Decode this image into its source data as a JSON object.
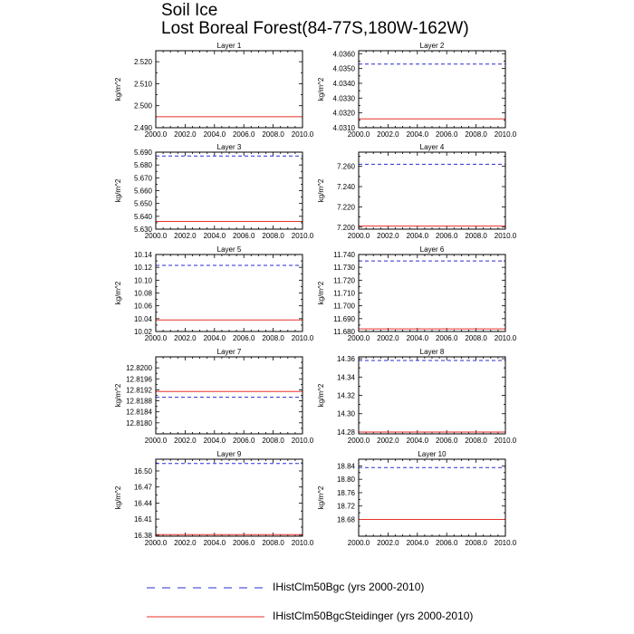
{
  "title": "Soil Ice",
  "subtitle": "Lost Boreal Forest(84-77S,180W-162W)",
  "colors": {
    "series1": "#2b2bd6",
    "series2": "#e8302a"
  },
  "chart_data": [
    {
      "type": "line",
      "title": "Layer 1",
      "ylabel": "kg/m^2",
      "xlim": [
        2000,
        2010
      ],
      "xticks": [
        "2000.0",
        "2002.0",
        "2004.0",
        "2006.0",
        "2008.0",
        "2010.0"
      ],
      "ylim": [
        2.49,
        2.525
      ],
      "yticks": [
        "2.490",
        "2.500",
        "2.510",
        "2.520"
      ],
      "series": [
        {
          "name": "IHistClm50Bgc (yrs 2000-2010)",
          "style": "dashed",
          "x": [
            2000,
            2010
          ],
          "values": [
            2.525,
            2.525
          ]
        },
        {
          "name": "IHistClm50BgcSteidinger (yrs 2000-2010)",
          "style": "solid",
          "x": [
            2000,
            2010
          ],
          "values": [
            2.495,
            2.495
          ]
        }
      ]
    },
    {
      "type": "line",
      "title": "Layer 2",
      "ylabel": "kg/m^2",
      "xlim": [
        2000,
        2010
      ],
      "xticks": [
        "2000.0",
        "2002.0",
        "2004.0",
        "2006.0",
        "2008.0",
        "2010.0"
      ],
      "ylim": [
        4.031,
        4.0362
      ],
      "yticks": [
        "4.0310",
        "4.0320",
        "4.0330",
        "4.0340",
        "4.0350",
        "4.0360"
      ],
      "series": [
        {
          "name": "IHistClm50Bgc (yrs 2000-2010)",
          "style": "dashed",
          "x": [
            2000,
            2010
          ],
          "values": [
            4.0353,
            4.0353
          ]
        },
        {
          "name": "IHistClm50BgcSteidinger (yrs 2000-2010)",
          "style": "solid",
          "x": [
            2000,
            2010
          ],
          "values": [
            4.0316,
            4.0316
          ]
        }
      ]
    },
    {
      "type": "line",
      "title": "Layer 3",
      "ylabel": "kg/m^2",
      "xlim": [
        2000,
        2010
      ],
      "xticks": [
        "2000.0",
        "2002.0",
        "2004.0",
        "2006.0",
        "2008.0",
        "2010.0"
      ],
      "ylim": [
        5.63,
        5.69
      ],
      "yticks": [
        "5.630",
        "5.640",
        "5.650",
        "5.660",
        "5.670",
        "5.680",
        "5.690"
      ],
      "series": [
        {
          "name": "IHistClm50Bgc (yrs 2000-2010)",
          "style": "dashed",
          "x": [
            2000,
            2010
          ],
          "values": [
            5.687,
            5.687
          ]
        },
        {
          "name": "IHistClm50BgcSteidinger (yrs 2000-2010)",
          "style": "solid",
          "x": [
            2000,
            2010
          ],
          "values": [
            5.636,
            5.636
          ]
        }
      ]
    },
    {
      "type": "line",
      "title": "Layer 4",
      "ylabel": "kg/m^2",
      "xlim": [
        2000,
        2010
      ],
      "xticks": [
        "2000.0",
        "2002.0",
        "2004.0",
        "2006.0",
        "2008.0",
        "2010.0"
      ],
      "ylim": [
        7.198,
        7.274
      ],
      "yticks": [
        "7.200",
        "7.220",
        "7.240",
        "7.260"
      ],
      "series": [
        {
          "name": "IHistClm50Bgc (yrs 2000-2010)",
          "style": "dashed",
          "x": [
            2000,
            2010
          ],
          "values": [
            7.262,
            7.262
          ]
        },
        {
          "name": "IHistClm50BgcSteidinger (yrs 2000-2010)",
          "style": "solid",
          "x": [
            2000,
            2010
          ],
          "values": [
            7.201,
            7.201
          ]
        }
      ]
    },
    {
      "type": "line",
      "title": "Layer 5",
      "ylabel": "kg/m^2",
      "xlim": [
        2000,
        2010
      ],
      "xticks": [
        "2000.0",
        "2002.0",
        "2004.0",
        "2006.0",
        "2008.0",
        "2010.0"
      ],
      "ylim": [
        10.02,
        10.14
      ],
      "yticks": [
        "10.02",
        "10.04",
        "10.06",
        "10.08",
        "10.10",
        "10.12",
        "10.14"
      ],
      "series": [
        {
          "name": "IHistClm50Bgc (yrs 2000-2010)",
          "style": "dashed",
          "x": [
            2000,
            2010
          ],
          "values": [
            10.123,
            10.123
          ]
        },
        {
          "name": "IHistClm50BgcSteidinger (yrs 2000-2010)",
          "style": "solid",
          "x": [
            2000,
            2010
          ],
          "values": [
            10.038,
            10.038
          ]
        }
      ]
    },
    {
      "type": "line",
      "title": "Layer 6",
      "ylabel": "kg/m^2",
      "xlim": [
        2000,
        2010
      ],
      "xticks": [
        "2000.0",
        "2002.0",
        "2004.0",
        "2006.0",
        "2008.0",
        "2010.0"
      ],
      "ylim": [
        11.68,
        11.74
      ],
      "yticks": [
        "11.680",
        "11.690",
        "11.700",
        "11.710",
        "11.720",
        "11.730",
        "11.740"
      ],
      "series": [
        {
          "name": "IHistClm50Bgc (yrs 2000-2010)",
          "style": "dashed",
          "x": [
            2000,
            2010
          ],
          "values": [
            11.735,
            11.735
          ]
        },
        {
          "name": "IHistClm50BgcSteidinger (yrs 2000-2010)",
          "style": "solid",
          "x": [
            2000,
            2010
          ],
          "values": [
            11.682,
            11.682
          ]
        }
      ]
    },
    {
      "type": "line",
      "title": "Layer 7",
      "ylabel": "kg/m^2",
      "xlim": [
        2000,
        2010
      ],
      "xticks": [
        "2000.0",
        "2002.0",
        "2004.0",
        "2006.0",
        "2008.0",
        "2010.0"
      ],
      "ylim": [
        12.8176,
        12.8204
      ],
      "yticks": [
        "12.8180",
        "12.8184",
        "12.8188",
        "12.8192",
        "12.8196",
        "12.8200"
      ],
      "series": [
        {
          "name": "IHistClm50Bgc (yrs 2000-2010)",
          "style": "dashed",
          "x": [
            2000,
            2010
          ],
          "values": [
            12.81893,
            12.81893
          ]
        },
        {
          "name": "IHistClm50BgcSteidinger (yrs 2000-2010)",
          "style": "solid",
          "x": [
            2000,
            2010
          ],
          "values": [
            12.81914,
            12.81914
          ]
        }
      ]
    },
    {
      "type": "line",
      "title": "Layer 8",
      "ylabel": "kg/m^2",
      "xlim": [
        2000,
        2010
      ],
      "xticks": [
        "2000.0",
        "2002.0",
        "2004.0",
        "2006.0",
        "2008.0",
        "2010.0"
      ],
      "ylim": [
        14.278,
        14.362
      ],
      "yticks": [
        "14.28",
        "14.30",
        "14.32",
        "14.34",
        "14.36"
      ],
      "series": [
        {
          "name": "IHistClm50Bgc (yrs 2000-2010)",
          "style": "dashed",
          "x": [
            2000,
            2010
          ],
          "values": [
            14.358,
            14.358
          ]
        },
        {
          "name": "IHistClm50BgcSteidinger (yrs 2000-2010)",
          "style": "solid",
          "x": [
            2000,
            2010
          ],
          "values": [
            14.28,
            14.28
          ]
        }
      ]
    },
    {
      "type": "line",
      "title": "Layer 9",
      "ylabel": "kg/m^2",
      "xlim": [
        2000,
        2010
      ],
      "xticks": [
        "2000.0",
        "2002.0",
        "2004.0",
        "2006.0",
        "2008.0",
        "2010.0"
      ],
      "ylim": [
        16.378,
        16.522
      ],
      "yticks": [
        "16.38",
        "16.41",
        "16.44",
        "16.47",
        "16.50"
      ],
      "series": [
        {
          "name": "IHistClm50Bgc (yrs 2000-2010)",
          "style": "dashed",
          "x": [
            2000,
            2010
          ],
          "values": [
            16.514,
            16.514
          ]
        },
        {
          "name": "IHistClm50BgcSteidinger (yrs 2000-2010)",
          "style": "solid",
          "x": [
            2000,
            2010
          ],
          "values": [
            16.381,
            16.381
          ]
        }
      ]
    },
    {
      "type": "line",
      "title": "Layer 10",
      "ylabel": "kg/m^2",
      "xlim": [
        2000,
        2010
      ],
      "xticks": [
        "2000.0",
        "2002.0",
        "2004.0",
        "2006.0",
        "2008.0",
        "2010.0"
      ],
      "ylim": [
        18.63,
        18.86
      ],
      "yticks": [
        "18.68",
        "18.72",
        "18.76",
        "18.80",
        "18.84"
      ],
      "series": [
        {
          "name": "IHistClm50Bgc (yrs 2000-2010)",
          "style": "dashed",
          "x": [
            2000,
            2010
          ],
          "values": [
            18.835,
            18.835
          ]
        },
        {
          "name": "IHistClm50BgcSteidinger (yrs 2000-2010)",
          "style": "solid",
          "x": [
            2000,
            2010
          ],
          "values": [
            18.68,
            18.68
          ]
        }
      ]
    }
  ],
  "legend": {
    "placement": "bottom",
    "items": [
      {
        "label": "IHistClm50Bgc (yrs 2000-2010)",
        "style": "dashed"
      },
      {
        "label": "IHistClm50BgcSteidinger (yrs 2000-2010)",
        "style": "solid"
      }
    ]
  }
}
